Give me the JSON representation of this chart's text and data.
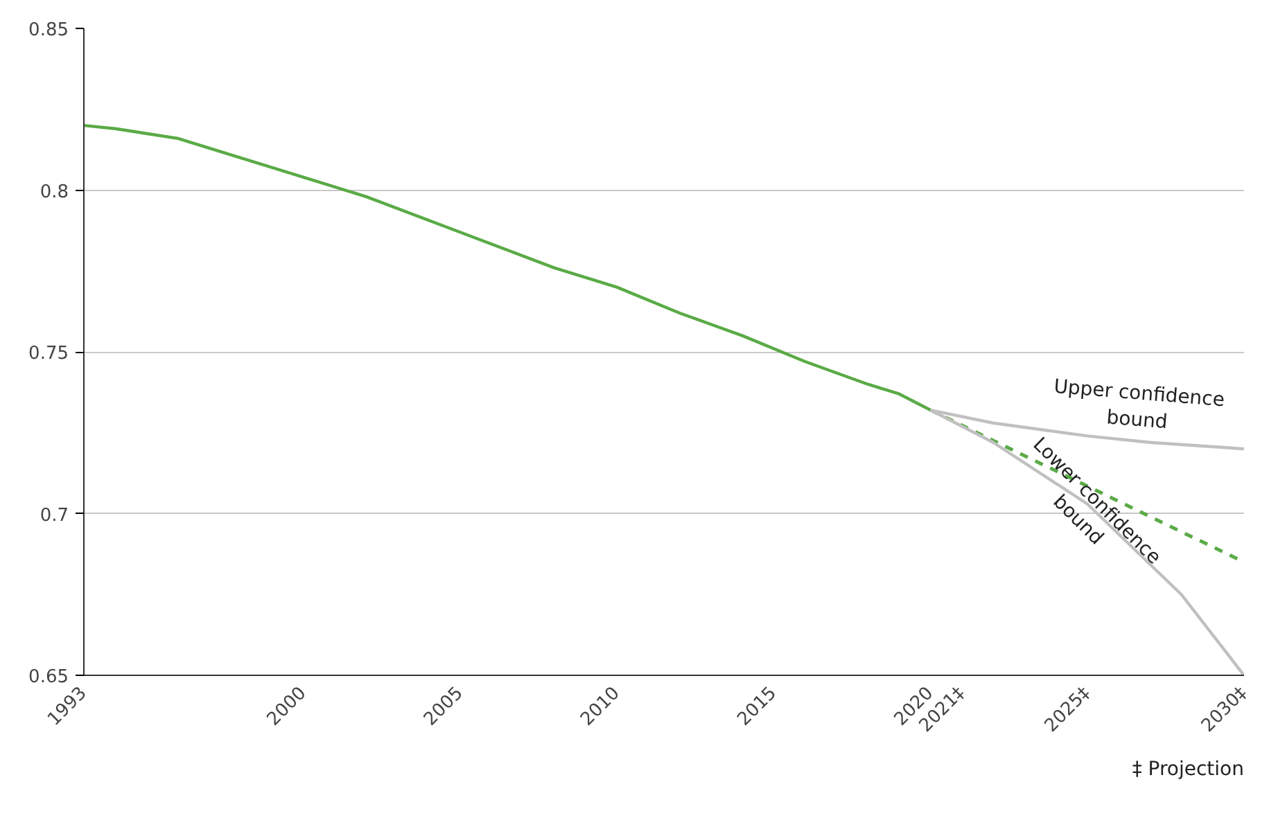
{
  "chart_data": {
    "type": "line",
    "ylim": [
      0.65,
      0.85
    ],
    "yticks": [
      0.65,
      0.7,
      0.75,
      0.8,
      0.85
    ],
    "xlim": [
      1993,
      2030
    ],
    "xticks": [
      1993,
      2000,
      2005,
      2010,
      2015,
      2020,
      {
        "value": 2021,
        "label": "2021‡"
      },
      {
        "value": 2025,
        "label": "2025‡"
      },
      {
        "value": 2030,
        "label": "2030‡"
      }
    ],
    "grid": "y",
    "marker": "none",
    "series": [
      {
        "color": "#5aaa46",
        "line_style": "solid",
        "x": [
          1993,
          1994,
          1996,
          1998,
          2000,
          2002,
          2005,
          2008,
          2010,
          2012,
          2014,
          2016,
          2018,
          2019,
          2020
        ],
        "values": [
          0.82,
          0.819,
          0.816,
          0.81,
          0.804,
          0.798,
          0.787,
          0.776,
          0.77,
          0.762,
          0.755,
          0.747,
          0.74,
          0.737,
          0.732
        ]
      },
      {
        "color": "#5aaa46",
        "line_style": "dashed",
        "x": [
          2020,
          2030
        ],
        "values": [
          0.732,
          0.685
        ]
      },
      {
        "color": "#c0c0c0",
        "line_style": "solid",
        "x": [
          2020,
          2022,
          2025,
          2027,
          2030
        ],
        "values": [
          0.732,
          0.728,
          0.724,
          0.722,
          0.72
        ]
      },
      {
        "color": "#c0c0c0",
        "line_style": "solid",
        "x": [
          2020,
          2022,
          2025,
          2028,
          2030
        ],
        "values": [
          0.732,
          0.722,
          0.703,
          0.675,
          0.65
        ]
      }
    ],
    "annotations": [
      {
        "text": "Upper confidence bound",
        "x": 2027,
        "y": 0.722
      },
      {
        "text": "Lower confidence bound",
        "x": 2025,
        "y": 0.703
      },
      "‡ Projection"
    ]
  }
}
